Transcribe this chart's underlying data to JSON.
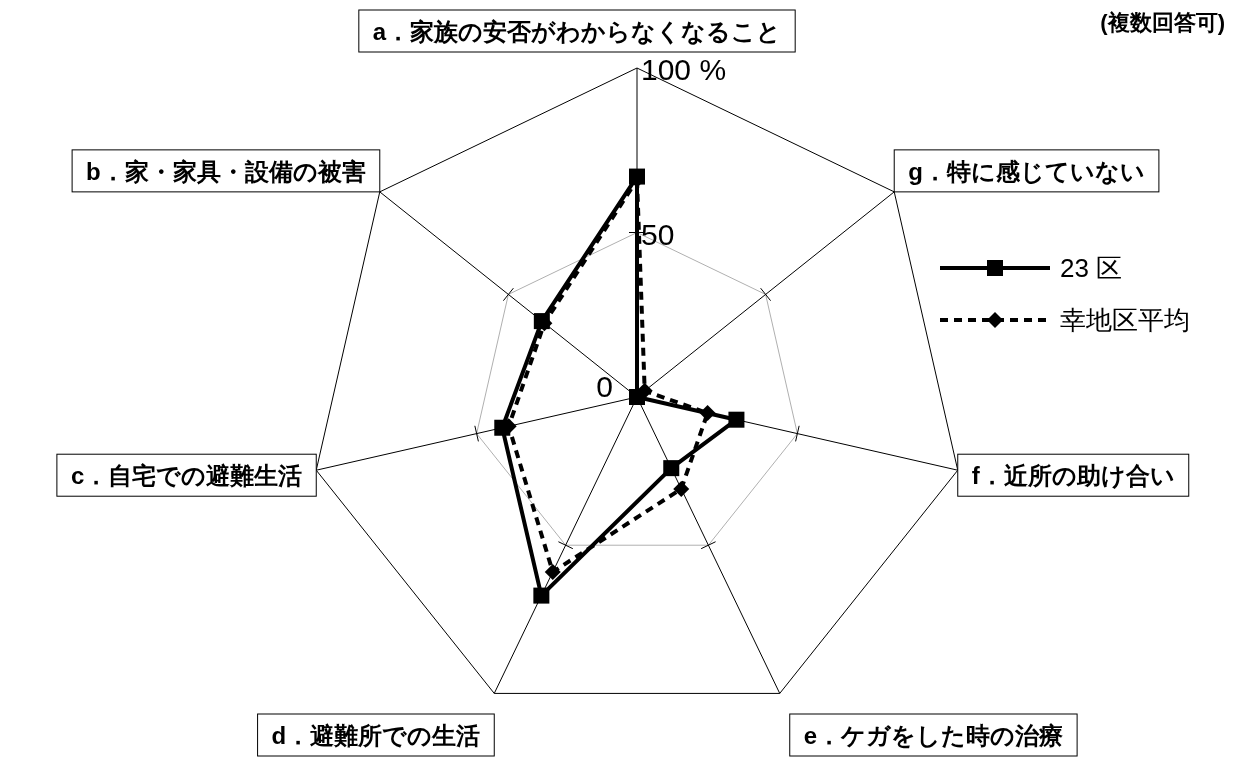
{
  "chart_data": {
    "type": "radar",
    "categories": [
      "a．家族の安否がわからなくなること",
      "g．特に感じていない",
      "f．近所の助け合い",
      "e．ケガをした時の治療",
      "d．避難所での生活",
      "c．自宅での避難生活",
      "b．家・家具・設備の被害"
    ],
    "series": [
      {
        "name": "23 区",
        "color": "#000000",
        "values": [
          67,
          0,
          31,
          24,
          67,
          42,
          37
        ],
        "marker": "square",
        "line_style": "solid"
      },
      {
        "name": "幸地区平均",
        "color": "#000000",
        "values": [
          66,
          3,
          22,
          31,
          59,
          40,
          36
        ],
        "marker": "diamond",
        "line_style": "dashed"
      }
    ],
    "ylim": [
      0,
      100
    ],
    "yticks": [
      0,
      50,
      {
        "value": 100,
        "label": "100 %"
      }
    ],
    "grid": true,
    "legend": "right",
    "annotations": [
      "(複数回答可)"
    ]
  }
}
